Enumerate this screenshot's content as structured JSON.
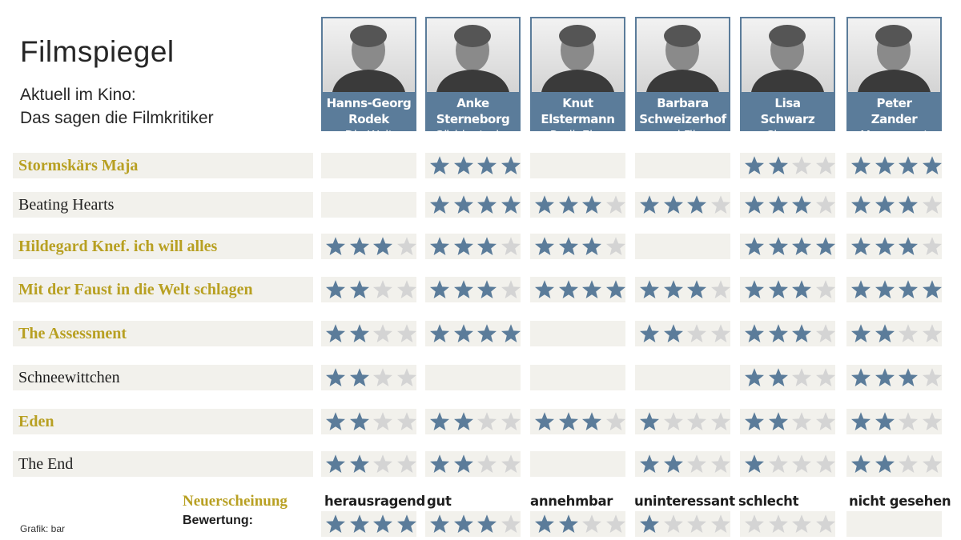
{
  "header": {
    "title": "Filmspiegel",
    "subtitle_line1": "Aktuell im Kino:",
    "subtitle_line2": "Das sagen die Filmkritiker"
  },
  "colors": {
    "header_bg": "#5b7c9a",
    "star_filled": "#5b7c9a",
    "star_empty": "#d4d4d4",
    "cell_bg": "#f2f1ec",
    "new_release_text": "#b8a022"
  },
  "critics": [
    {
      "first": "Hanns-Georg",
      "last": "Rodek",
      "outlet": "Die Welt"
    },
    {
      "first": "Anke",
      "last": "Sterneborg",
      "outlet": "Süddeutsche"
    },
    {
      "first": "Knut",
      "last": "Elstermann",
      "outlet": "RadioEins"
    },
    {
      "first": "Barbara",
      "last": "Schweizerhof",
      "outlet": "epd Film"
    },
    {
      "first": "Lisa",
      "last": "Schwarz",
      "outlet": "Cinema"
    },
    {
      "first": "Peter",
      "last": "Zander",
      "outlet": "Morgenpost"
    }
  ],
  "films": [
    {
      "title": "Stormskärs Maja",
      "new_release": true,
      "ratings": [
        null,
        4,
        null,
        null,
        2,
        4
      ]
    },
    {
      "title": "Beating Hearts",
      "new_release": false,
      "ratings": [
        null,
        4,
        3,
        3,
        3,
        3
      ]
    },
    {
      "title": "Hildegard Knef. ich will alles",
      "new_release": true,
      "ratings": [
        3,
        3,
        3,
        null,
        4,
        3
      ]
    },
    {
      "title": "Mit der Faust in die Welt schlagen",
      "new_release": true,
      "ratings": [
        2,
        3,
        4,
        3,
        3,
        4
      ]
    },
    {
      "title": "The Assessment",
      "new_release": true,
      "ratings": [
        2,
        4,
        null,
        2,
        3,
        2
      ]
    },
    {
      "title": "Schneewittchen",
      "new_release": false,
      "ratings": [
        2,
        null,
        null,
        null,
        2,
        3
      ]
    },
    {
      "title": "Eden",
      "new_release": true,
      "ratings": [
        2,
        2,
        3,
        1,
        2,
        2
      ]
    },
    {
      "title": "The End",
      "new_release": false,
      "ratings": [
        2,
        2,
        null,
        2,
        1,
        2
      ]
    }
  ],
  "legend": {
    "new_release_label": "Neuerscheinung",
    "rating_label": "Bewertung:",
    "scale": [
      {
        "label": "herausragend",
        "stars": 4
      },
      {
        "label": "gut",
        "stars": 3
      },
      {
        "label": "annehmbar",
        "stars": 2
      },
      {
        "label": "uninteressant",
        "stars": 1
      },
      {
        "label": "schlecht",
        "stars": 0
      },
      {
        "label": "nicht gesehen",
        "stars": null
      }
    ]
  },
  "credit": "Grafik: bar"
}
